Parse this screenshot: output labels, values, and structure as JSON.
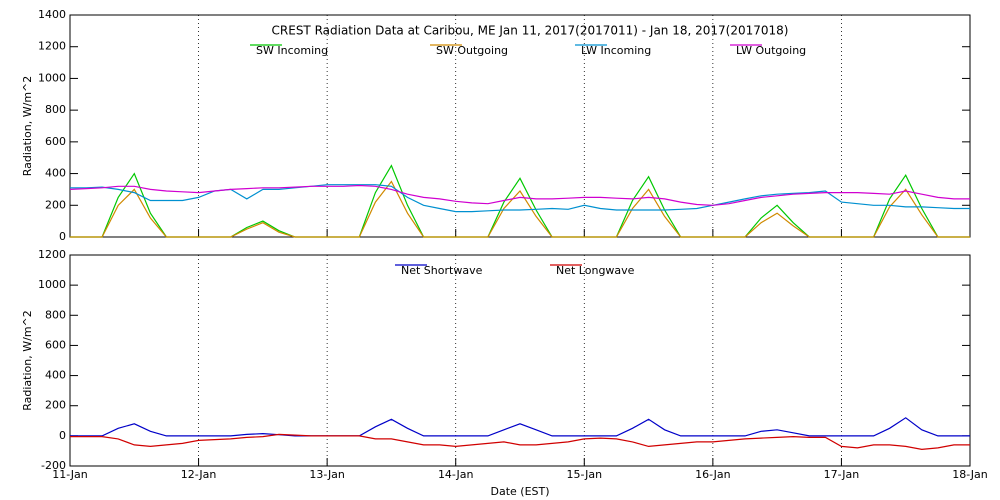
{
  "chart_data": [
    {
      "type": "line",
      "title": "CREST Radiation Data at Caribou, ME   Jan 11, 2017(2017011) - Jan 18, 2017(2017018)",
      "ylabel": "Radiation, W/m^2",
      "x": [
        0,
        0.125,
        0.25,
        0.375,
        0.5,
        0.625,
        0.75,
        0.875,
        1,
        1.125,
        1.25,
        1.375,
        1.5,
        1.625,
        1.75,
        1.875,
        2,
        2.125,
        2.25,
        2.375,
        2.5,
        2.625,
        2.75,
        2.875,
        3,
        3.125,
        3.25,
        3.375,
        3.5,
        3.625,
        3.75,
        3.875,
        4,
        4.125,
        4.25,
        4.375,
        4.5,
        4.625,
        4.75,
        4.875,
        5,
        5.125,
        5.25,
        5.375,
        5.5,
        5.625,
        5.75,
        5.875,
        6,
        6.125,
        6.25,
        6.375,
        6.5,
        6.625,
        6.75,
        6.875,
        7
      ],
      "xlim": [
        0,
        7
      ],
      "xticks": [
        0,
        1,
        2,
        3,
        4,
        5,
        6,
        7
      ],
      "ylim": [
        0,
        1400
      ],
      "yticks": [
        0,
        200,
        400,
        600,
        800,
        1000,
        1200,
        1400
      ],
      "grid": true,
      "series": [
        {
          "name": "SW Incoming",
          "color": "#00c800",
          "values": [
            0,
            0,
            0,
            250,
            400,
            150,
            0,
            0,
            0,
            0,
            0,
            60,
            100,
            40,
            0,
            0,
            0,
            0,
            0,
            280,
            450,
            200,
            0,
            0,
            0,
            0,
            0,
            220,
            370,
            170,
            0,
            0,
            0,
            0,
            0,
            230,
            380,
            170,
            0,
            0,
            0,
            0,
            0,
            120,
            200,
            90,
            0,
            0,
            0,
            0,
            0,
            240,
            390,
            180,
            0,
            0,
            0
          ]
        },
        {
          "name": "SW Outgoing",
          "color": "#d08a00",
          "values": [
            0,
            0,
            0,
            200,
            300,
            120,
            0,
            0,
            0,
            0,
            0,
            50,
            90,
            30,
            0,
            0,
            0,
            0,
            0,
            220,
            350,
            150,
            0,
            0,
            0,
            0,
            0,
            180,
            290,
            130,
            0,
            0,
            0,
            0,
            0,
            180,
            300,
            130,
            0,
            0,
            0,
            0,
            0,
            90,
            150,
            70,
            0,
            0,
            0,
            0,
            0,
            190,
            300,
            140,
            0,
            0,
            0
          ]
        },
        {
          "name": "LW Incoming",
          "color": "#0090d0",
          "values": [
            310,
            310,
            315,
            300,
            280,
            230,
            230,
            230,
            250,
            290,
            300,
            240,
            300,
            300,
            310,
            320,
            330,
            330,
            330,
            330,
            320,
            250,
            200,
            180,
            160,
            160,
            165,
            170,
            170,
            175,
            180,
            175,
            200,
            180,
            170,
            170,
            170,
            170,
            175,
            180,
            200,
            220,
            240,
            260,
            270,
            275,
            280,
            290,
            220,
            210,
            200,
            200,
            190,
            190,
            185,
            180,
            180
          ]
        },
        {
          "name": "LW Outgoing",
          "color": "#d000d0",
          "values": [
            300,
            305,
            310,
            320,
            320,
            300,
            290,
            285,
            280,
            290,
            300,
            305,
            310,
            310,
            315,
            320,
            320,
            320,
            325,
            320,
            300,
            270,
            250,
            240,
            225,
            215,
            210,
            230,
            250,
            240,
            240,
            245,
            250,
            250,
            245,
            240,
            250,
            240,
            220,
            205,
            200,
            210,
            230,
            250,
            260,
            270,
            275,
            280,
            280,
            280,
            275,
            270,
            290,
            270,
            250,
            240,
            240
          ]
        }
      ]
    },
    {
      "type": "line",
      "ylabel": "Radiation, W/m^2",
      "xlabel": "Date (EST)",
      "x": [
        0,
        0.125,
        0.25,
        0.375,
        0.5,
        0.625,
        0.75,
        0.875,
        1,
        1.125,
        1.25,
        1.375,
        1.5,
        1.625,
        1.75,
        1.875,
        2,
        2.125,
        2.25,
        2.375,
        2.5,
        2.625,
        2.75,
        2.875,
        3,
        3.125,
        3.25,
        3.375,
        3.5,
        3.625,
        3.75,
        3.875,
        4,
        4.125,
        4.25,
        4.375,
        4.5,
        4.625,
        4.75,
        4.875,
        5,
        5.125,
        5.25,
        5.375,
        5.5,
        5.625,
        5.75,
        5.875,
        6,
        6.125,
        6.25,
        6.375,
        6.5,
        6.625,
        6.75,
        6.875,
        7
      ],
      "xlim": [
        0,
        7
      ],
      "xticks": [
        {
          "value": 0,
          "label": "11-Jan"
        },
        {
          "value": 1,
          "label": "12-Jan"
        },
        {
          "value": 2,
          "label": "13-Jan"
        },
        {
          "value": 3,
          "label": "14-Jan"
        },
        {
          "value": 4,
          "label": "15-Jan"
        },
        {
          "value": 5,
          "label": "16-Jan"
        },
        {
          "value": 6,
          "label": "17-Jan"
        },
        {
          "value": 7,
          "label": "18-Jan"
        }
      ],
      "ylim": [
        -200,
        1200
      ],
      "yticks": [
        -200,
        0,
        200,
        400,
        600,
        800,
        1000,
        1200
      ],
      "grid": true,
      "series": [
        {
          "name": "Net Shortwave",
          "color": "#0000c8",
          "values": [
            0,
            0,
            0,
            50,
            80,
            30,
            0,
            0,
            0,
            0,
            0,
            10,
            15,
            8,
            0,
            0,
            0,
            0,
            0,
            60,
            110,
            50,
            0,
            0,
            0,
            0,
            0,
            40,
            80,
            40,
            0,
            0,
            0,
            0,
            0,
            50,
            110,
            40,
            0,
            0,
            0,
            0,
            0,
            30,
            40,
            20,
            0,
            0,
            0,
            0,
            0,
            50,
            120,
            40,
            0,
            0,
            0
          ]
        },
        {
          "name": "Net Longwave",
          "color": "#d00000",
          "values": [
            -5,
            -5,
            -5,
            -20,
            -60,
            -70,
            -60,
            -50,
            -30,
            -25,
            -20,
            -10,
            -5,
            10,
            5,
            0,
            0,
            0,
            0,
            -20,
            -20,
            -40,
            -60,
            -60,
            -70,
            -60,
            -50,
            -40,
            -60,
            -60,
            -50,
            -40,
            -20,
            -15,
            -20,
            -40,
            -70,
            -60,
            -50,
            -40,
            -40,
            -30,
            -20,
            -15,
            -10,
            -5,
            -10,
            -10,
            -70,
            -80,
            -60,
            -60,
            -70,
            -90,
            -80,
            -60,
            -60
          ]
        }
      ]
    }
  ]
}
